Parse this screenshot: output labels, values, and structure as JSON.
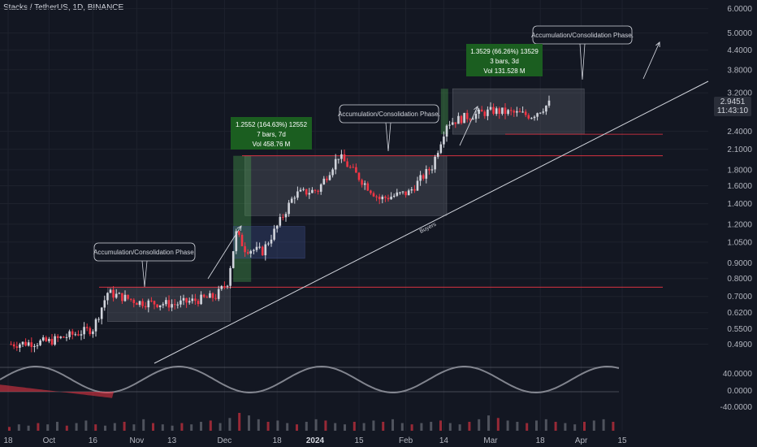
{
  "header": {
    "title": "Stacks / TetherUS, 1D, BINANCE"
  },
  "price_tag": {
    "price": "2.9451",
    "countdown": "11:43:10"
  },
  "annotations": {
    "phase_label": "Accumulation/Consolidation Phase.",
    "buyers_label": "Buyers",
    "measure1": {
      "line1": "1.2552 (164.63%) 12552",
      "line2": "7 bars, 7d",
      "line3": "Vol 458.76 M"
    },
    "measure2": {
      "line1": "1.3529 (66.26%) 13529",
      "line2": "3 bars, 3d",
      "line3": "Vol 131.528 M"
    }
  },
  "colors": {
    "up": "#d1d4dc",
    "down": "#f23645",
    "background": "#131722",
    "grid": "#1e222d",
    "level_line": "#f23645",
    "measure_box": "#1b5e20",
    "zone_fill": "#4a4e59"
  },
  "chart_data": [
    {
      "type": "candlestick",
      "title": "Stacks / TetherUS, 1D, BINANCE",
      "y_scale": "log",
      "y_ticks": [
        "6.0000",
        "5.0000",
        "4.4000",
        "3.8000",
        "3.2000",
        "2.4000",
        "2.1000",
        "1.8000",
        "1.6000",
        "1.4000",
        "1.2000",
        "1.0500",
        "0.9000",
        "0.8000",
        "0.7000",
        "0.6200",
        "0.5500",
        "0.4900"
      ],
      "x_ticks": [
        "18",
        "Oct",
        "16",
        "Nov",
        "13",
        "Dec",
        "18",
        "2024",
        "15",
        "Feb",
        "14",
        "Mar",
        "18",
        "Apr",
        "15"
      ],
      "last_price": 2.9451,
      "key_levels": [
        0.75,
        2.0,
        2.35
      ],
      "trendline_label": "Buyers",
      "approx_path": [
        {
          "date": "Sep 18",
          "close": 0.49
        },
        {
          "date": "Oct 1",
          "close": 0.5
        },
        {
          "date": "Oct 16",
          "close": 0.55
        },
        {
          "date": "Oct 21",
          "close": 0.72
        },
        {
          "date": "Nov 1",
          "close": 0.67
        },
        {
          "date": "Nov 13",
          "close": 0.66
        },
        {
          "date": "Nov 27",
          "close": 0.7
        },
        {
          "date": "Dec 1",
          "close": 0.78
        },
        {
          "date": "Dec 4",
          "close": 1.12
        },
        {
          "date": "Dec 7",
          "close": 1.0
        },
        {
          "date": "Dec 13",
          "close": 0.98
        },
        {
          "date": "Dec 18",
          "close": 1.18
        },
        {
          "date": "Dec 24",
          "close": 1.5
        },
        {
          "date": "Jan 1",
          "close": 1.55
        },
        {
          "date": "Jan 8",
          "close": 2.0
        },
        {
          "date": "Jan 15",
          "close": 1.7
        },
        {
          "date": "Jan 22",
          "close": 1.45
        },
        {
          "date": "Feb 1",
          "close": 1.52
        },
        {
          "date": "Feb 9",
          "close": 1.85
        },
        {
          "date": "Feb 14",
          "close": 2.55
        },
        {
          "date": "Feb 22",
          "close": 2.7
        },
        {
          "date": "Mar 1",
          "close": 2.8
        },
        {
          "date": "Mar 8",
          "close": 2.75
        },
        {
          "date": "Mar 14",
          "close": 2.7
        },
        {
          "date": "Mar 20",
          "close": 2.95
        }
      ]
    },
    {
      "type": "oscillator",
      "y_ticks": [
        "40.0000",
        "0.0000",
        "-40.0000"
      ]
    },
    {
      "type": "bar",
      "series": [
        {
          "values": [
            3,
            5,
            4,
            6,
            5,
            7,
            4,
            6,
            8,
            5,
            4,
            6,
            7,
            5,
            9,
            6,
            5,
            4,
            6,
            5,
            7,
            8,
            6,
            10,
            14,
            12,
            9,
            7,
            8,
            6,
            5,
            7,
            9,
            8,
            6,
            5,
            7,
            6,
            8,
            7,
            9,
            6,
            5,
            6,
            7,
            8,
            6,
            5,
            7,
            9,
            12,
            10,
            8,
            7,
            6,
            8,
            9,
            7,
            6,
            5,
            7,
            8,
            9,
            7
          ]
        }
      ]
    }
  ]
}
